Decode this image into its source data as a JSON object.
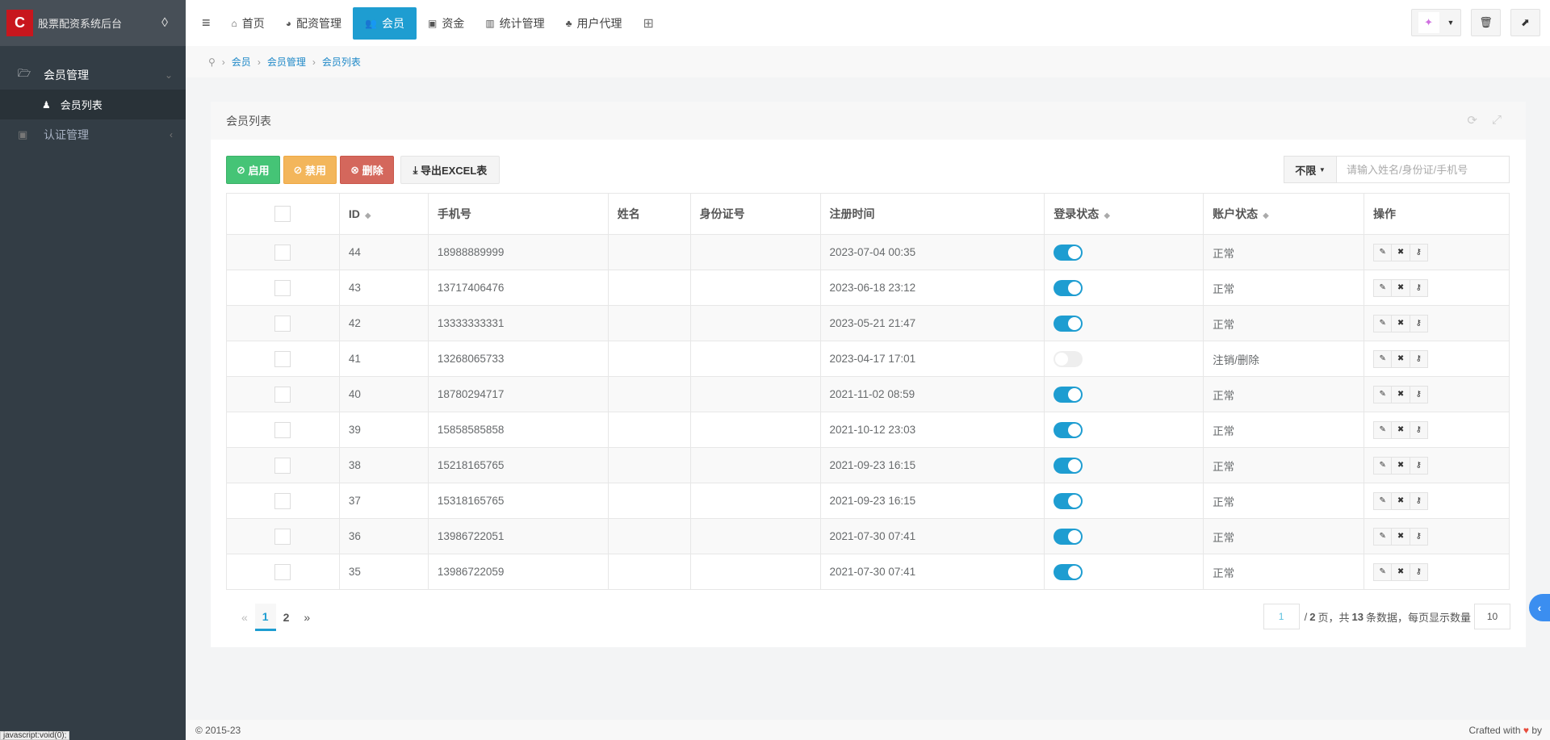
{
  "sidebar": {
    "app_title": "股票配资系统后台",
    "logo_text": "股票配资",
    "items": [
      {
        "label": "会员管理",
        "icon": "folder-open-icon"
      },
      {
        "label": "会员列表",
        "icon": "user-icon"
      },
      {
        "label": "认证管理",
        "icon": "id-card-icon"
      }
    ]
  },
  "topnav": {
    "items": [
      "首页",
      "配资管理",
      "会员",
      "资金",
      "统计管理",
      "用户代理"
    ],
    "active": "会员"
  },
  "breadcrumb": [
    "会员",
    "会员管理",
    "会员列表"
  ],
  "panel": {
    "title": "会员列表"
  },
  "toolbar": {
    "enable": "启用",
    "disable": "禁用",
    "delete": "删除",
    "export": "导出EXCEL表",
    "filter": "不限",
    "search_placeholder": "请输入姓名/身份证/手机号"
  },
  "table": {
    "headers": [
      "ID",
      "手机号",
      "姓名",
      "身份证号",
      "注册时间",
      "登录状态",
      "账户状态",
      "操作"
    ],
    "rows": [
      {
        "id": "44",
        "phone": "18988889999",
        "name": "",
        "idcard": "",
        "time": "2023-07-04 00:35",
        "login": true,
        "status": "正常"
      },
      {
        "id": "43",
        "phone": "13717406476",
        "name": "",
        "idcard": "",
        "time": "2023-06-18 23:12",
        "login": true,
        "status": "正常"
      },
      {
        "id": "42",
        "phone": "13333333331",
        "name": "",
        "idcard": "",
        "time": "2023-05-21 21:47",
        "login": true,
        "status": "正常"
      },
      {
        "id": "41",
        "phone": "13268065733",
        "name": "",
        "idcard": "",
        "time": "2023-04-17 17:01",
        "login": false,
        "status": "注销/删除"
      },
      {
        "id": "40",
        "phone": "18780294717",
        "name": "",
        "idcard": "",
        "time": "2021-11-02 08:59",
        "login": true,
        "status": "正常"
      },
      {
        "id": "39",
        "phone": "15858585858",
        "name": "",
        "idcard": "",
        "time": "2021-10-12 23:03",
        "login": true,
        "status": "正常"
      },
      {
        "id": "38",
        "phone": "15218165765",
        "name": "",
        "idcard": "",
        "time": "2021-09-23 16:15",
        "login": true,
        "status": "正常"
      },
      {
        "id": "37",
        "phone": "15318165765",
        "name": "",
        "idcard": "",
        "time": "2021-09-23 16:15",
        "login": true,
        "status": "正常"
      },
      {
        "id": "36",
        "phone": "13986722051",
        "name": "",
        "idcard": "",
        "time": "2021-07-30 07:41",
        "login": true,
        "status": "正常"
      },
      {
        "id": "35",
        "phone": "13986722059",
        "name": "",
        "idcard": "",
        "time": "2021-07-30 07:41",
        "login": true,
        "status": "正常"
      }
    ]
  },
  "pagination": {
    "prev": "«",
    "pages": [
      "1",
      "2"
    ],
    "current": "1",
    "next": "»",
    "page_input": "1",
    "total_pages": "2",
    "total_records": "13",
    "per_page": "10",
    "text_a": "/",
    "text_b": "页，共",
    "text_c": "条数据，每页显示数量"
  },
  "footer": {
    "copyright": "© 2015-23",
    "crafted": "Crafted with",
    "by": "by"
  },
  "statusbar": "javascript:void(0);",
  "colors": {
    "accent": "#1e9dd1",
    "success": "#45c476",
    "warning": "#f3b65b",
    "danger": "#d4675c"
  }
}
